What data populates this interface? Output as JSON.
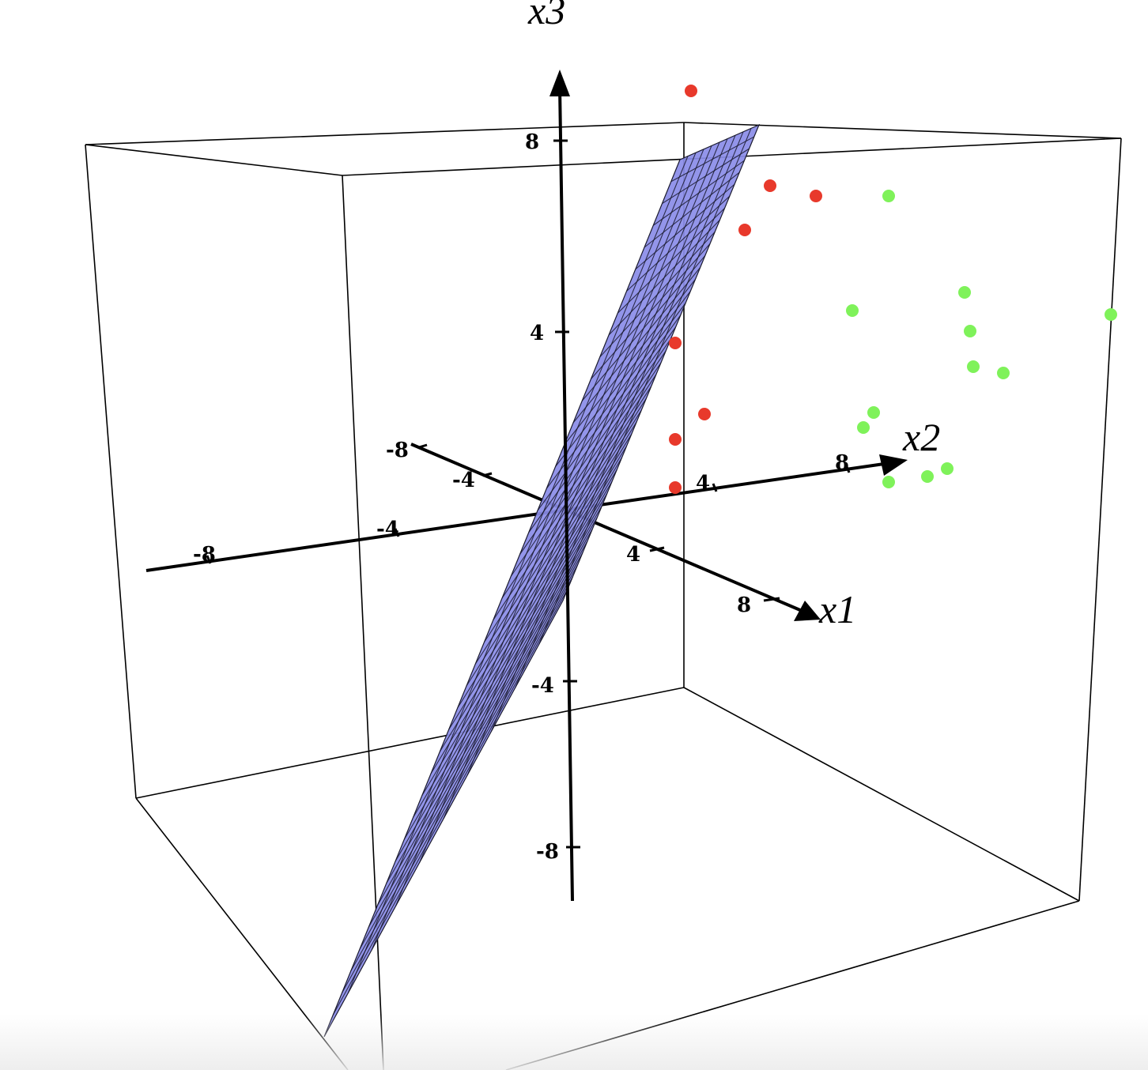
{
  "chart_data": {
    "type": "scatter",
    "title": "",
    "colors": {
      "class_a": "#e8392b",
      "class_b": "#7ff25a",
      "plane_fill": "#8a8ce8",
      "plane_mesh": "#1a1a2e",
      "axes": "#000000"
    },
    "axes": {
      "x1": {
        "label": "x1",
        "ticks": [
          "-8",
          "-4",
          "4",
          "8"
        ],
        "range": [
          -10,
          10
        ]
      },
      "x2": {
        "label": "x2",
        "ticks": [
          "-8",
          "-4",
          "4",
          "8"
        ],
        "range": [
          -10,
          10
        ]
      },
      "x3": {
        "label": "x3",
        "ticks": [
          "8",
          "4",
          "-4",
          "-8"
        ],
        "range": [
          -10,
          10
        ]
      }
    },
    "series": [
      {
        "class": "a",
        "color": "#e8392b",
        "points_screen_est": 9
      },
      {
        "class": "b",
        "color": "#7ff25a",
        "points_screen_est": 15
      }
    ],
    "separating_plane": true,
    "bounding_box": true
  }
}
